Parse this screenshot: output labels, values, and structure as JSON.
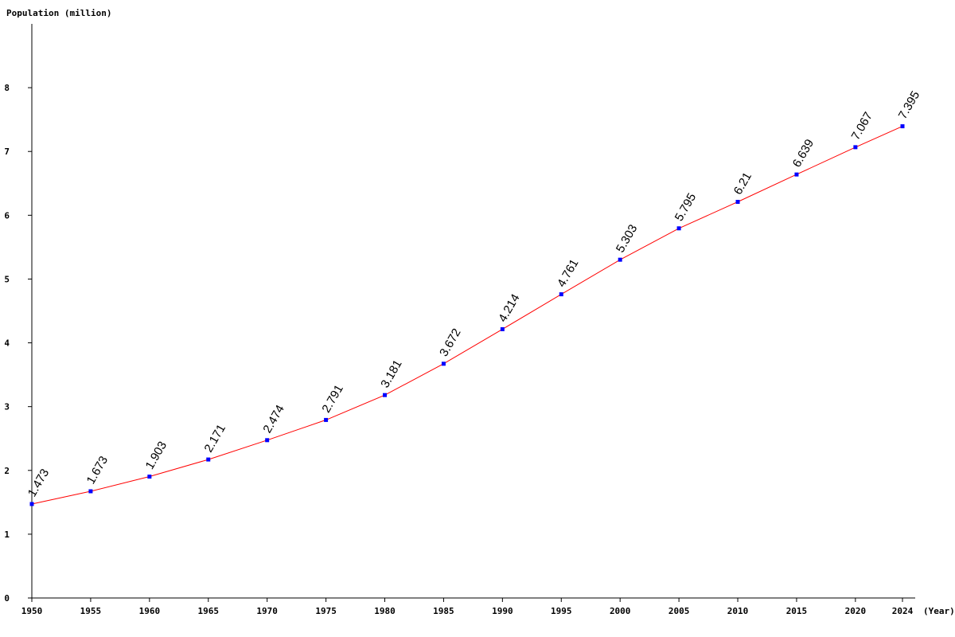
{
  "chart_data": {
    "type": "line",
    "ylabel": "Population (million)",
    "xlabel": "(Year)",
    "x": [
      1950,
      1955,
      1960,
      1965,
      1970,
      1975,
      1980,
      1985,
      1990,
      1995,
      2000,
      2005,
      2010,
      2015,
      2020,
      2024
    ],
    "values": [
      1.473,
      1.673,
      1.903,
      2.171,
      2.474,
      2.791,
      3.181,
      3.672,
      4.214,
      4.761,
      5.303,
      5.795,
      6.21,
      6.639,
      7.067,
      7.395
    ],
    "data_labels": [
      "1.473",
      "1.673",
      "1.903",
      "2.171",
      "2.474",
      "2.791",
      "3.181",
      "3.672",
      "4.214",
      "4.761",
      "5.303",
      "5.795",
      "6.21",
      "6.639",
      "7.067",
      "7.395"
    ],
    "x_tick_labels": [
      "1950",
      "1955",
      "1960",
      "1965",
      "1970",
      "1975",
      "1980",
      "1985",
      "1990",
      "1995",
      "2000",
      "2005",
      "2010",
      "2015",
      "2020",
      "2024"
    ],
    "y_ticks": [
      0,
      1,
      2,
      3,
      4,
      5,
      6,
      7,
      8
    ],
    "ylim": [
      0,
      9
    ],
    "xlim": [
      1950,
      2024
    ],
    "grid": false,
    "legend": "none",
    "line_color": "#ff0000",
    "marker_color": "#0000ff"
  }
}
